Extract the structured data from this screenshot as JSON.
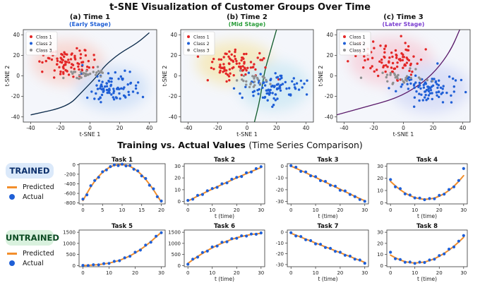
{
  "page_title": "t-SNE Visualization of Customer Groups Over Time",
  "section_title": "Training vs. Actual Values",
  "section_subtitle": "(Time Series Comparison)",
  "colors": {
    "class1": "#e32626",
    "class2": "#1f5fd6",
    "class3": "#8f8f8f",
    "predicted": "#f28e2b",
    "actual": "#1f5fd6"
  },
  "badges": {
    "trained": "TRAINED",
    "untrained": "UNTRAINED"
  },
  "side_legend": {
    "predicted": "Predicted",
    "actual": "Actual"
  },
  "chart_data": [
    {
      "type": "scatter",
      "title": "(a) Time 1",
      "subtitle": "(Early Stage)",
      "subtitle_color": "#1f5fd6",
      "boundary_color": "#0b2a4a",
      "xlabel": "t-SNE 1",
      "ylabel": "t-SNE 2",
      "xlim": [
        -45,
        45
      ],
      "ylim": [
        -45,
        45
      ],
      "xticks": [
        -40,
        -20,
        0,
        20,
        40
      ],
      "yticks": [
        -40,
        -20,
        0,
        20,
        40
      ],
      "legend": [
        "Class 1",
        "Class 2",
        "Class 3"
      ],
      "legend_position": "top-left",
      "series": [
        {
          "name": "Class 1",
          "cx": -15,
          "cy": 13,
          "sx": 11,
          "sy": 9,
          "n": 85
        },
        {
          "name": "Class 2",
          "cx": 15,
          "cy": -12,
          "sx": 11,
          "sy": 9,
          "n": 85
        },
        {
          "name": "Class 3",
          "cx": -3,
          "cy": 2,
          "sx": 9,
          "sy": 3,
          "n": 30
        }
      ],
      "boundary": [
        [
          -40,
          -38
        ],
        [
          -15,
          -30
        ],
        [
          -5,
          -15
        ],
        [
          5,
          0
        ],
        [
          10,
          10
        ],
        [
          20,
          22
        ],
        [
          32,
          32
        ],
        [
          40,
          42
        ]
      ]
    },
    {
      "type": "scatter",
      "title": "(b) Time 2",
      "subtitle": "(Mid Stage)",
      "subtitle_color": "#2a9d3a",
      "boundary_color": "#0f5a2a",
      "xlabel": "t-SNE 1",
      "ylabel": "t-SNE 2",
      "xlim": [
        -45,
        45
      ],
      "ylim": [
        -45,
        45
      ],
      "xticks": [
        -40,
        -20,
        0,
        20,
        40
      ],
      "yticks": [
        -40,
        -20,
        0,
        20,
        40
      ],
      "legend": [
        "Class 1",
        "Class 2",
        "Class 3"
      ],
      "legend_position": "top-left",
      "series": [
        {
          "name": "Class 1",
          "cx": -8,
          "cy": 12,
          "sx": 12,
          "sy": 9,
          "n": 85
        },
        {
          "name": "Class 2",
          "cx": 18,
          "cy": -10,
          "sx": 11,
          "sy": 10,
          "n": 85
        },
        {
          "name": "Class 3",
          "cx": 4,
          "cy": -3,
          "sx": 6,
          "sy": 4,
          "n": 25
        }
      ],
      "boundary": [
        [
          5,
          -45
        ],
        [
          8,
          -28
        ],
        [
          10,
          -12
        ],
        [
          12,
          5
        ],
        [
          15,
          20
        ],
        [
          18,
          35
        ],
        [
          20,
          45
        ]
      ]
    },
    {
      "type": "scatter",
      "title": "(c) Time 3",
      "subtitle": "(Later Stage)",
      "subtitle_color": "#7b3fd0",
      "boundary_color": "#5a1a6a",
      "xlabel": "t-SNE 1",
      "ylabel": "t-SNE 2",
      "xlim": [
        -45,
        45
      ],
      "ylim": [
        -45,
        45
      ],
      "xticks": [
        -40,
        -20,
        0,
        20,
        40
      ],
      "yticks": [
        -40,
        -20,
        0,
        20,
        40
      ],
      "legend": [
        "Class 1",
        "Class 2",
        "Class 3"
      ],
      "legend_position": "top-left",
      "series": [
        {
          "name": "Class 1",
          "cx": -8,
          "cy": 14,
          "sx": 13,
          "sy": 10,
          "n": 85
        },
        {
          "name": "Class 2",
          "cx": 18,
          "cy": -12,
          "sx": 12,
          "sy": 10,
          "n": 85
        },
        {
          "name": "Class 3",
          "cx": 0,
          "cy": -2,
          "sx": 10,
          "sy": 4,
          "n": 30
        }
      ],
      "boundary": [
        [
          -45,
          -38
        ],
        [
          -25,
          -30
        ],
        [
          -5,
          -22
        ],
        [
          10,
          -10
        ],
        [
          22,
          5
        ],
        [
          32,
          25
        ],
        [
          38,
          45
        ]
      ]
    },
    {
      "type": "line",
      "title": "Task 1",
      "xlabel": "",
      "xlim": [
        -1,
        21
      ],
      "ylim": [
        -820,
        20
      ],
      "xticks": [
        0,
        5,
        10,
        15,
        20
      ],
      "yticks": [
        -800,
        -600,
        -400,
        -200,
        0
      ],
      "predicted": {
        "x": [
          0,
          1,
          2,
          3,
          4,
          5,
          6,
          7,
          8,
          9,
          10,
          11,
          12,
          13,
          14,
          15,
          16,
          17,
          18,
          19,
          20
        ],
        "y": [
          -750,
          -600,
          -465,
          -345,
          -245,
          -160,
          -95,
          -45,
          -15,
          -2,
          0,
          -10,
          -35,
          -80,
          -140,
          -215,
          -305,
          -410,
          -525,
          -650,
          -780
        ]
      },
      "actual": {
        "x": [
          0,
          1,
          2,
          3,
          4,
          5,
          6,
          7,
          8,
          9,
          10,
          11,
          12,
          13,
          14,
          15,
          16,
          17,
          18,
          19,
          20
        ],
        "y": [
          -720,
          -630,
          -440,
          -330,
          -265,
          -150,
          -110,
          -40,
          -5,
          -20,
          10,
          -25,
          -20,
          -95,
          -130,
          -235,
          -290,
          -430,
          -505,
          -670,
          -760
        ]
      }
    },
    {
      "type": "line",
      "title": "Task 2",
      "xlabel": "t (time)",
      "xlim": [
        -1.5,
        31.5
      ],
      "ylim": [
        -2,
        32
      ],
      "xticks": [
        0,
        10,
        20,
        30
      ],
      "yticks": [
        0,
        10,
        20,
        30
      ],
      "predicted": {
        "x": [
          0,
          2,
          4,
          6,
          8,
          10,
          12,
          14,
          16,
          18,
          20,
          22,
          24,
          26,
          28,
          30
        ],
        "y": [
          0.5,
          2.5,
          4.6,
          6.6,
          8.6,
          10.5,
          12.5,
          14.4,
          16.3,
          18.2,
          20,
          21.8,
          23.6,
          25.4,
          27.1,
          28.8
        ]
      },
      "actual": {
        "x": [
          0,
          2,
          4,
          6,
          8,
          10,
          12,
          14,
          16,
          18,
          20,
          22,
          24,
          26,
          28,
          30
        ],
        "y": [
          1,
          2,
          5.2,
          6,
          9.1,
          11,
          12,
          15,
          15.8,
          18.9,
          20.4,
          21.2,
          24.3,
          25,
          27.8,
          29.5
        ]
      }
    },
    {
      "type": "line",
      "title": "Task 3",
      "xlabel": "t (time)",
      "xlim": [
        -1.5,
        31.5
      ],
      "ylim": [
        -32,
        2
      ],
      "xticks": [
        0,
        10,
        20,
        30
      ],
      "yticks": [
        -30,
        -20,
        -10,
        0
      ],
      "predicted": {
        "x": [
          0,
          2,
          4,
          6,
          8,
          10,
          12,
          14,
          16,
          18,
          20,
          22,
          24,
          26,
          28,
          30
        ],
        "y": [
          0,
          -1.8,
          -3.7,
          -5.6,
          -7.6,
          -9.6,
          -11.6,
          -13.6,
          -15.6,
          -17.6,
          -19.6,
          -21.6,
          -23.6,
          -25.6,
          -27.5,
          -29.4
        ]
      },
      "actual": {
        "x": [
          0,
          2,
          4,
          6,
          8,
          10,
          12,
          14,
          16,
          18,
          20,
          22,
          24,
          26,
          28,
          30
        ],
        "y": [
          0.3,
          -1,
          -4.5,
          -5,
          -8.2,
          -9,
          -12.3,
          -13,
          -16.2,
          -17,
          -20.5,
          -21,
          -24,
          -25.8,
          -28.3,
          -29.8
        ]
      }
    },
    {
      "type": "line",
      "title": "Task 4",
      "xlabel": "t (time)",
      "xlim": [
        -1.5,
        31.5
      ],
      "ylim": [
        -1,
        32
      ],
      "xticks": [
        0,
        10,
        20,
        30
      ],
      "yticks": [
        0,
        10,
        20,
        30
      ],
      "predicted": {
        "x": [
          0,
          2,
          4,
          6,
          8,
          10,
          12,
          14,
          16,
          18,
          20,
          22,
          24,
          26,
          28,
          30
        ],
        "y": [
          17.5,
          13.8,
          10.6,
          7.9,
          5.8,
          4.2,
          3.2,
          2.8,
          3,
          3.8,
          5.3,
          7.4,
          10.1,
          13.5,
          17.5,
          22.2
        ]
      },
      "actual": {
        "x": [
          0,
          2,
          4,
          6,
          8,
          10,
          12,
          14,
          16,
          18,
          20,
          22,
          24,
          26,
          28,
          30
        ],
        "y": [
          19,
          13,
          11.5,
          7.2,
          6.3,
          3.9,
          3.8,
          2.5,
          3.4,
          3.2,
          6,
          7,
          10.8,
          13,
          18.2,
          28
        ]
      }
    },
    {
      "type": "line",
      "title": "Task 5",
      "xlabel": "",
      "xlim": [
        -1.5,
        31.5
      ],
      "ylim": [
        -50,
        1600
      ],
      "xticks": [
        0,
        10,
        20,
        30
      ],
      "yticks": [
        0,
        500,
        1000,
        1500
      ],
      "predicted": {
        "x": [
          0,
          2,
          4,
          6,
          8,
          10,
          12,
          14,
          16,
          18,
          20,
          22,
          24,
          26,
          28,
          30
        ],
        "y": [
          5,
          12,
          25,
          45,
          75,
          115,
          170,
          240,
          330,
          440,
          570,
          720,
          890,
          1080,
          1290,
          1500
        ]
      },
      "actual": {
        "x": [
          0,
          2,
          4,
          6,
          8,
          10,
          12,
          14,
          16,
          18,
          20,
          22,
          24,
          26,
          28,
          30
        ],
        "y": [
          10,
          5,
          40,
          35,
          90,
          100,
          190,
          220,
          350,
          420,
          600,
          700,
          920,
          1050,
          1320,
          1480
        ]
      }
    },
    {
      "type": "line",
      "title": "Task 6",
      "xlabel": "t (time)",
      "xlim": [
        -1.5,
        31.5
      ],
      "ylim": [
        -50,
        1600
      ],
      "xticks": [
        0,
        10,
        20,
        30
      ],
      "yticks": [
        0,
        500,
        1000,
        1500
      ],
      "predicted": {
        "x": [
          0,
          2,
          4,
          6,
          8,
          10,
          12,
          14,
          16,
          18,
          20,
          22,
          24,
          26,
          28,
          30
        ],
        "y": [
          100,
          260,
          410,
          550,
          680,
          800,
          910,
          1010,
          1100,
          1180,
          1250,
          1310,
          1360,
          1400,
          1430,
          1450
        ]
      },
      "actual": {
        "x": [
          0,
          2,
          4,
          6,
          8,
          10,
          12,
          14,
          16,
          18,
          20,
          22,
          24,
          26,
          28,
          30
        ],
        "y": [
          60,
          290,
          380,
          590,
          650,
          840,
          880,
          1050,
          1070,
          1210,
          1230,
          1340,
          1330,
          1420,
          1410,
          1470
        ]
      }
    },
    {
      "type": "line",
      "title": "Task 7",
      "xlabel": "t (time)",
      "xlim": [
        -1.5,
        31.5
      ],
      "ylim": [
        -32,
        2
      ],
      "xticks": [
        0,
        10,
        20,
        30
      ],
      "yticks": [
        -30,
        -20,
        -10,
        0
      ],
      "predicted": {
        "x": [
          0,
          2,
          4,
          6,
          8,
          10,
          12,
          14,
          16,
          18,
          20,
          22,
          24,
          26,
          28,
          30
        ],
        "y": [
          -1,
          -2.8,
          -4.6,
          -6.4,
          -8.2,
          -10,
          -11.8,
          -13.6,
          -15.4,
          -17.2,
          -19,
          -20.8,
          -22.6,
          -24.4,
          -26.2,
          -28
        ]
      },
      "actual": {
        "x": [
          0,
          2,
          4,
          6,
          8,
          10,
          12,
          14,
          16,
          18,
          20,
          22,
          24,
          26,
          28,
          30
        ],
        "y": [
          -0.5,
          -3.5,
          -4,
          -7,
          -7.8,
          -10.8,
          -11.2,
          -14.2,
          -15,
          -17.8,
          -18.6,
          -21.4,
          -22.2,
          -25,
          -25.8,
          -28.8
        ]
      }
    },
    {
      "type": "line",
      "title": "Task 8",
      "xlabel": "t (time)",
      "xlim": [
        -1.5,
        31.5
      ],
      "ylim": [
        -1,
        32
      ],
      "xticks": [
        0,
        10,
        20,
        30
      ],
      "yticks": [
        0,
        10,
        20,
        30
      ],
      "predicted": {
        "x": [
          0,
          2,
          4,
          6,
          8,
          10,
          12,
          14,
          16,
          18,
          20,
          22,
          24,
          26,
          28,
          30
        ],
        "y": [
          9.5,
          7,
          5,
          3.6,
          2.7,
          2.4,
          2.6,
          3.3,
          4.5,
          6.2,
          8.4,
          11,
          14,
          17.4,
          21.2,
          25.4
        ]
      },
      "actual": {
        "x": [
          0,
          2,
          4,
          6,
          8,
          10,
          12,
          14,
          16,
          18,
          20,
          22,
          24,
          26,
          28,
          30
        ],
        "y": [
          12,
          6.2,
          5.5,
          3,
          3.2,
          2,
          3.1,
          2.8,
          5,
          5.8,
          9,
          10.5,
          14.8,
          16.8,
          22,
          27
        ]
      }
    }
  ]
}
